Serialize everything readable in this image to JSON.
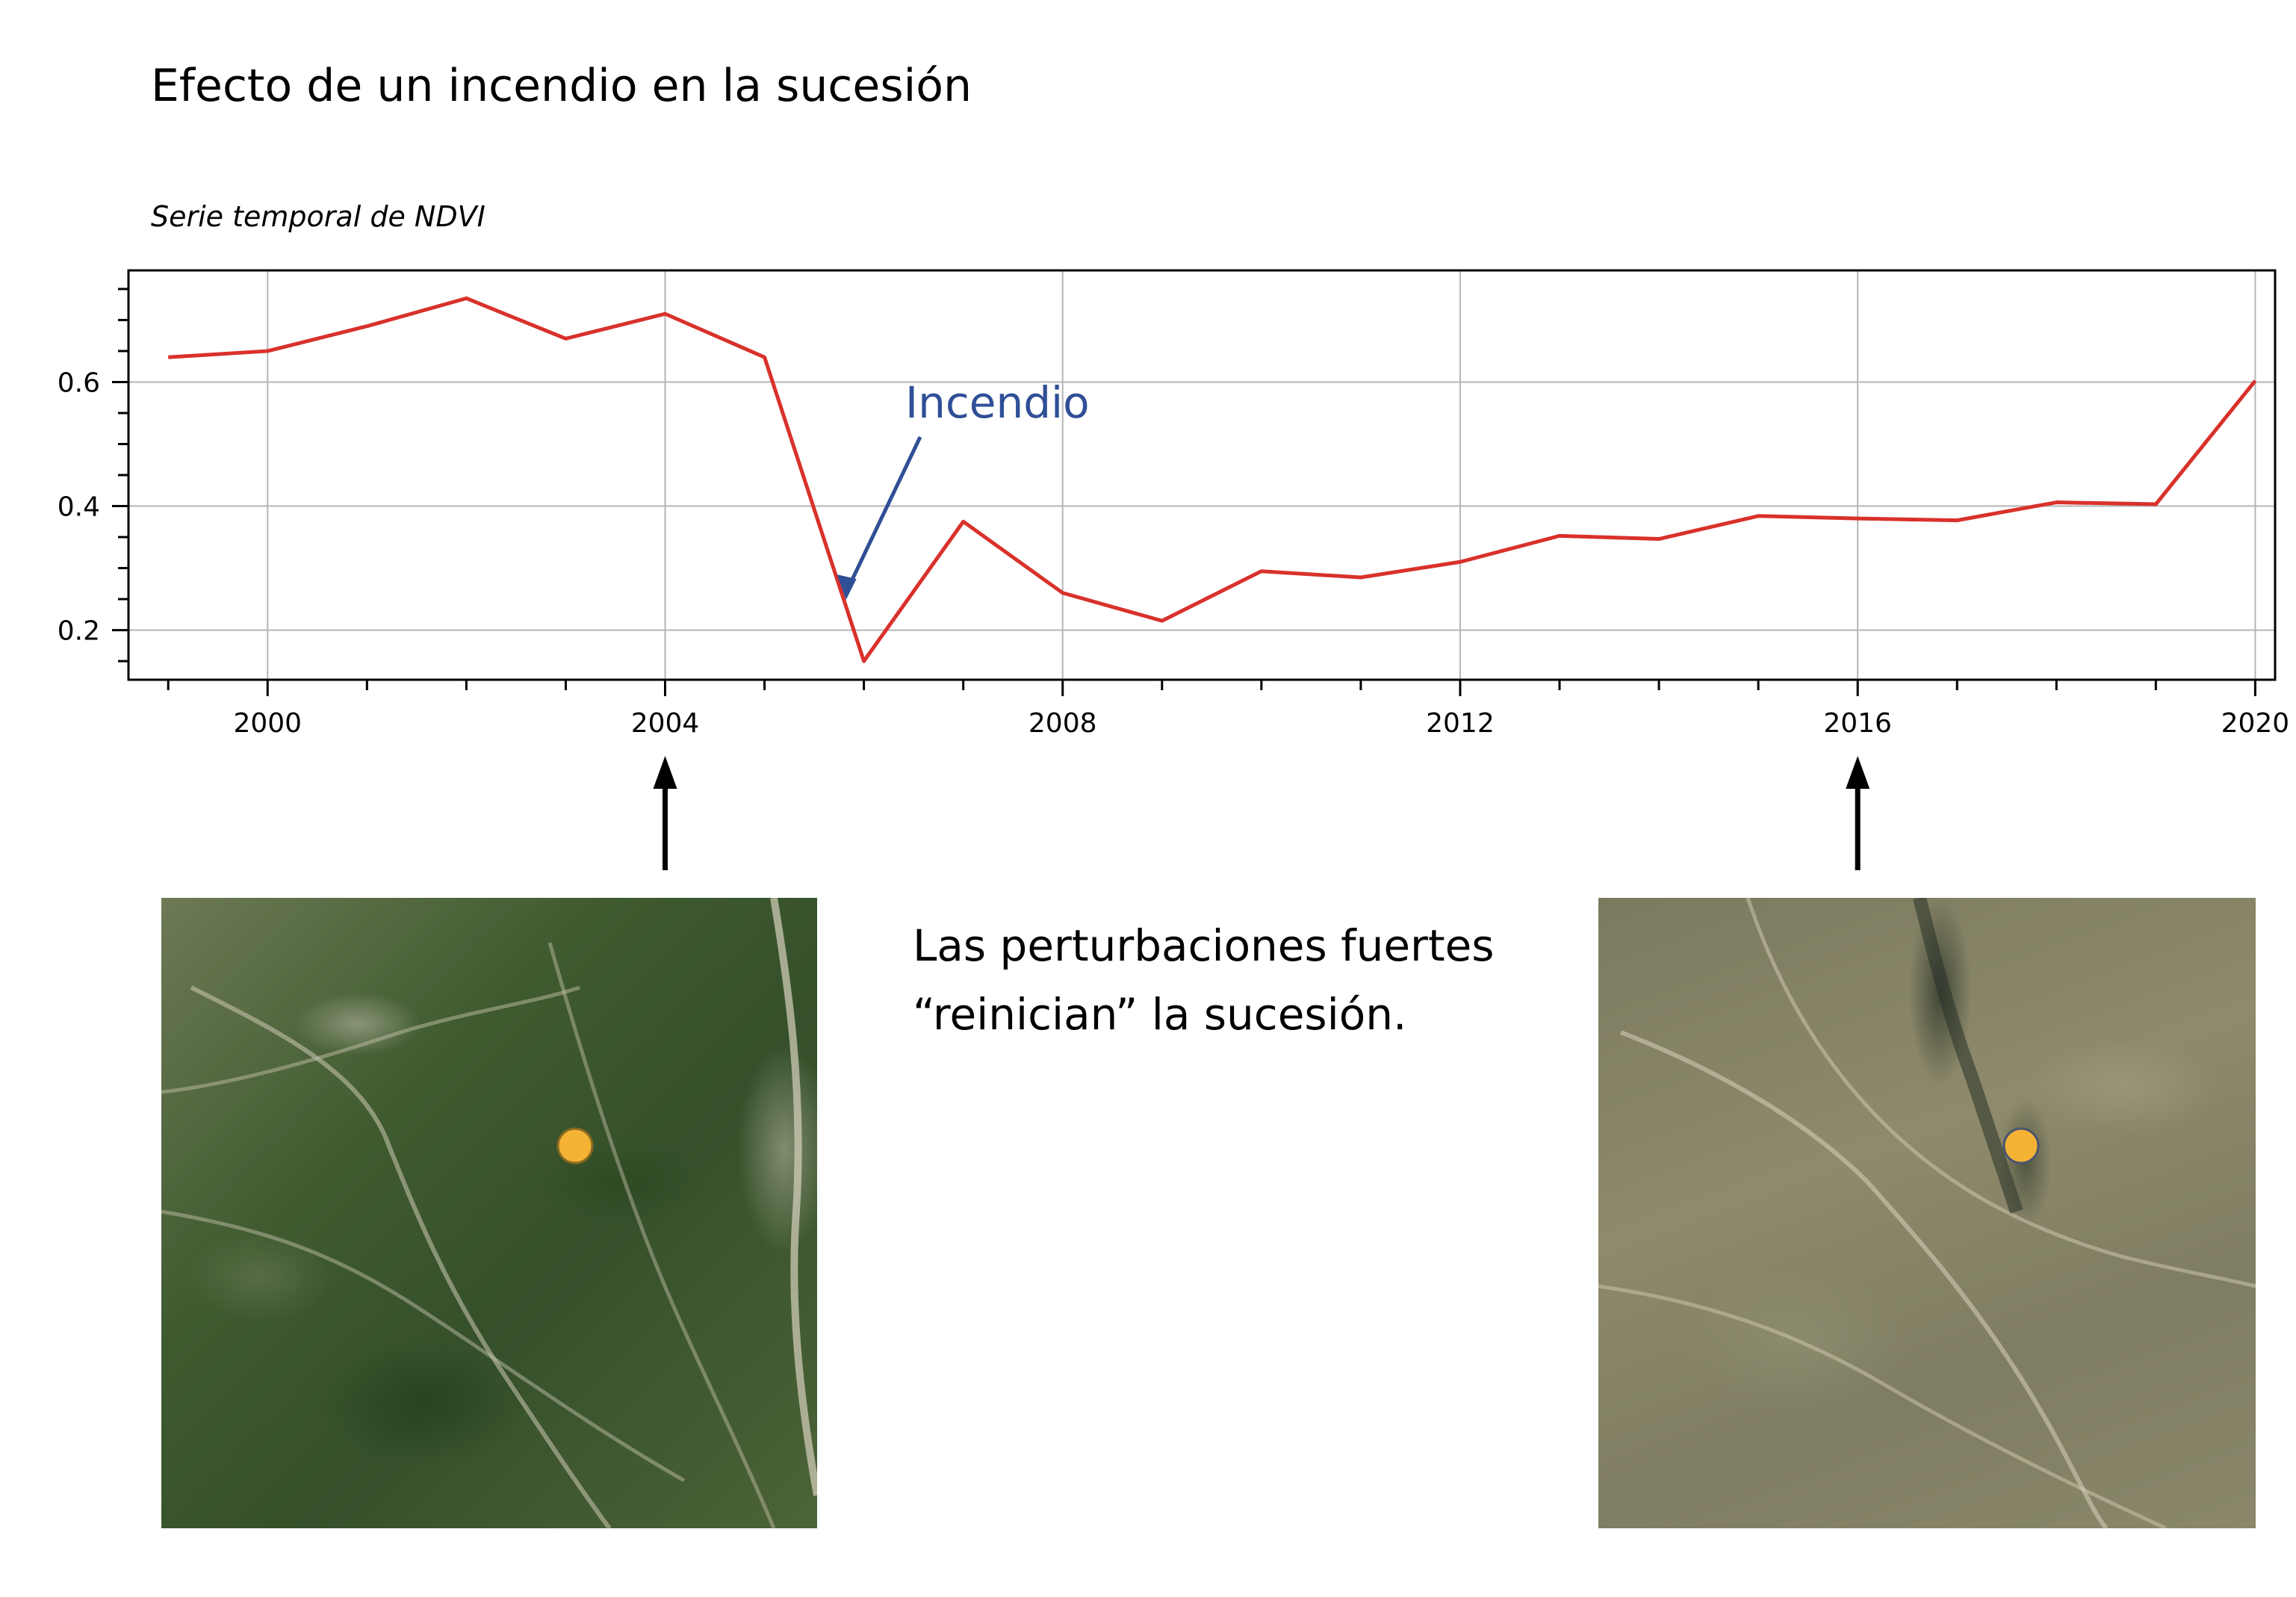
{
  "title": "Efecto de un incendio en la sucesión",
  "note": {
    "line1": "Las perturbaciones fuertes",
    "line2": "“reinician” la sucesión."
  },
  "colors": {
    "series_line": "#d9312b",
    "annotation": "#2f4f96",
    "marker": "#f5b335",
    "grid": "#b5b5b5"
  },
  "chart_data": {
    "type": "line",
    "title": "",
    "subtitle": "Serie temporal de NDVI",
    "xlabel": "",
    "ylabel": "",
    "xlim": [
      1998.6,
      2020.2
    ],
    "ylim": [
      0.12,
      0.78
    ],
    "grid": true,
    "x_ticks": [
      2000,
      2004,
      2008,
      2012,
      2016,
      2020
    ],
    "x_tick_labels": [
      "2000",
      "2004",
      "2008",
      "2012",
      "2016",
      "2020"
    ],
    "y_ticks": [
      0.2,
      0.4,
      0.6
    ],
    "y_tick_labels": [
      "0.2",
      "0.4",
      "0.6"
    ],
    "series": [
      {
        "x": [
          1999,
          2000,
          2001,
          2002,
          2003,
          2004,
          2005,
          2006,
          2007,
          2008,
          2009,
          2010,
          2011,
          2012,
          2013,
          2014,
          2015,
          2016,
          2017,
          2018,
          2019,
          2020
        ],
        "values": [
          0.64,
          0.65,
          0.69,
          0.735,
          0.67,
          0.71,
          0.64,
          0.15,
          0.375,
          0.26,
          0.215,
          0.295,
          0.285,
          0.31,
          0.352,
          0.347,
          0.384,
          0.38,
          0.377,
          0.406,
          0.403,
          0.602
        ]
      }
    ],
    "annotations": [
      {
        "text": "Incendio",
        "x": 2006,
        "y": 0.15
      }
    ],
    "markers_below_axis": [
      2004,
      2016
    ]
  },
  "images": [
    {
      "year_marker": 2004,
      "description_icon": "aerial-photo-2004"
    },
    {
      "year_marker": 2016,
      "description_icon": "aerial-photo-2016"
    }
  ]
}
